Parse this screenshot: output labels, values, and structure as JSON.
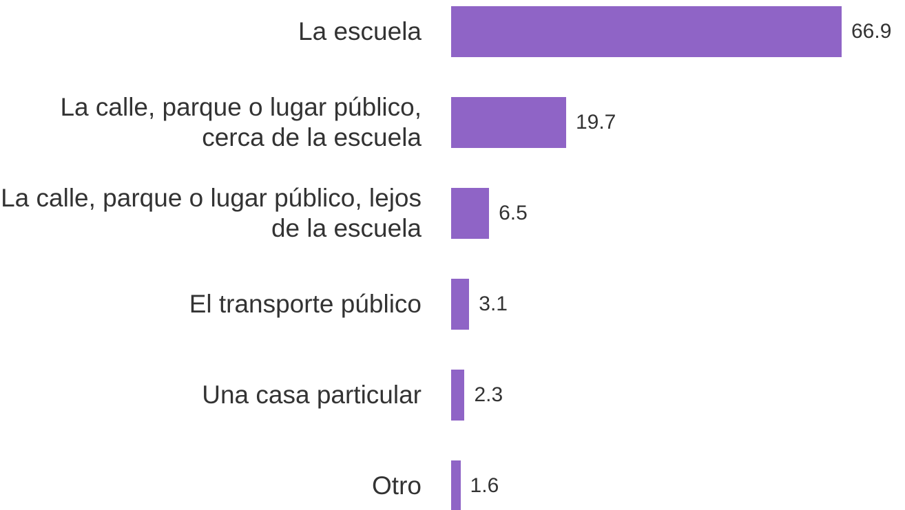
{
  "chart_data": {
    "type": "bar",
    "orientation": "horizontal",
    "categories": [
      "La escuela",
      "La calle, parque o lugar público, cerca de la escuela",
      "La calle, parque o lugar público, lejos de la escuela",
      "El transporte público",
      "Una casa particular",
      "Otro"
    ],
    "values": [
      66.9,
      19.7,
      6.5,
      3.1,
      2.3,
      1.6
    ],
    "color": "#8f64c6"
  }
}
